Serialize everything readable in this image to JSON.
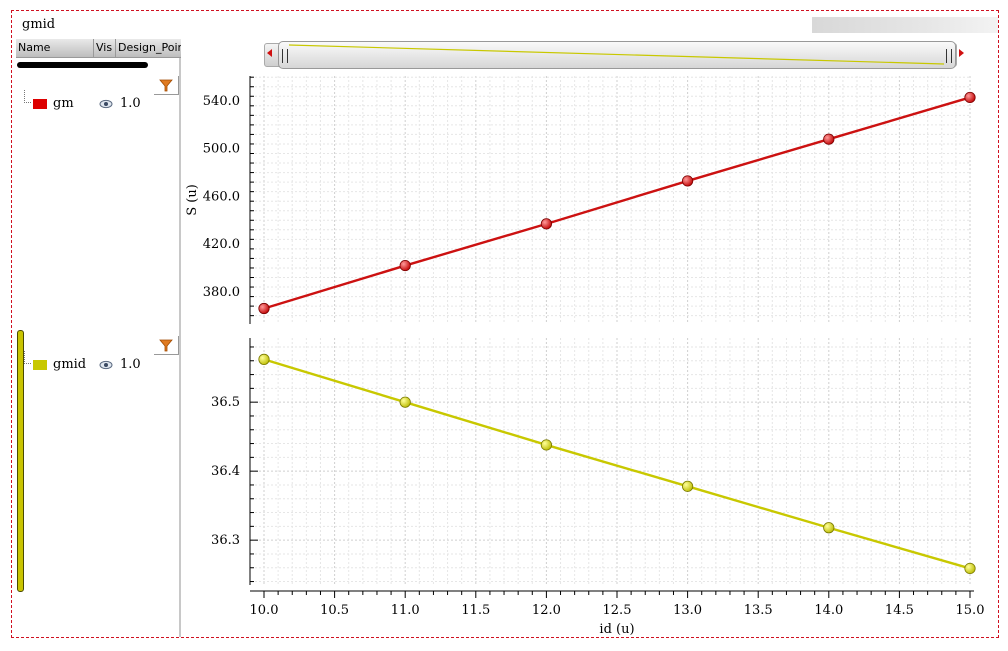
{
  "window": {
    "title": "gmid"
  },
  "sidebar": {
    "columns": [
      "Name",
      "Vis",
      "Design_Point"
    ],
    "rows": [
      {
        "name": "gm",
        "color": "#dd0000",
        "value": "1.0",
        "icon": "eye-icon"
      },
      {
        "name": "gmid",
        "color": "#c8c800",
        "value": "1.0",
        "icon": "eye-icon"
      }
    ]
  },
  "chart_data": [
    {
      "type": "line",
      "ylabel": "S (u)",
      "x": [
        10,
        11,
        12,
        13,
        14,
        15
      ],
      "series": [
        {
          "name": "gm",
          "color": "#cc1111",
          "values": [
            366,
            402,
            437,
            473,
            508,
            543
          ]
        }
      ],
      "xlim": [
        10,
        15
      ],
      "ylim": [
        353,
        561
      ],
      "yticks": [
        "380.0",
        "420.0",
        "460.0",
        "500.0",
        "540.0"
      ],
      "grid": true
    },
    {
      "type": "line",
      "ylabel": "",
      "x": [
        10,
        11,
        12,
        13,
        14,
        15
      ],
      "series": [
        {
          "name": "gmid",
          "color": "#c8c800",
          "values": [
            36.562,
            36.5,
            36.438,
            36.378,
            36.318,
            36.259
          ]
        }
      ],
      "xlim": [
        10,
        15
      ],
      "ylim": [
        36.235,
        36.593
      ],
      "yticks": [
        "36.3",
        "36.4",
        "36.5"
      ],
      "xlabel": "id (u)",
      "xticks": [
        "10.0",
        "10.5",
        "11.0",
        "11.5",
        "12.0",
        "12.5",
        "13.0",
        "13.5",
        "14.0",
        "14.5",
        "15.0"
      ],
      "grid": true
    }
  ]
}
